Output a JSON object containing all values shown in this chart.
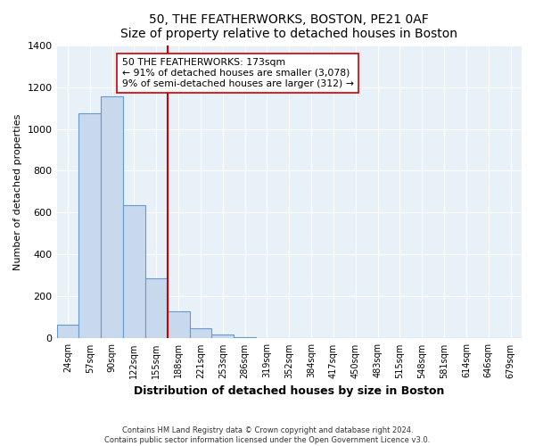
{
  "title": "50, THE FEATHERWORKS, BOSTON, PE21 0AF",
  "subtitle": "Size of property relative to detached houses in Boston",
  "xlabel": "Distribution of detached houses by size in Boston",
  "ylabel": "Number of detached properties",
  "bar_labels": [
    "24sqm",
    "57sqm",
    "90sqm",
    "122sqm",
    "155sqm",
    "188sqm",
    "221sqm",
    "253sqm",
    "286sqm",
    "319sqm",
    "352sqm",
    "384sqm",
    "417sqm",
    "450sqm",
    "483sqm",
    "515sqm",
    "548sqm",
    "581sqm",
    "614sqm",
    "646sqm",
    "679sqm"
  ],
  "bar_values": [
    65,
    1075,
    1155,
    638,
    288,
    130,
    47,
    18,
    8,
    0,
    0,
    0,
    0,
    0,
    0,
    0,
    0,
    0,
    0,
    0,
    0
  ],
  "bar_color": "#c8d9ee",
  "bar_edge_color": "#6699cc",
  "vline_color": "#cc0000",
  "annotation_line1": "50 THE FEATHERWORKS: 173sqm",
  "annotation_line2": "← 91% of detached houses are smaller (3,078)",
  "annotation_line3": "9% of semi-detached houses are larger (312) →",
  "annotation_box_color": "#ffffff",
  "annotation_box_edge": "#cc0000",
  "ylim": [
    0,
    1400
  ],
  "yticks": [
    0,
    200,
    400,
    600,
    800,
    1000,
    1200,
    1400
  ],
  "footer": "Contains HM Land Registry data © Crown copyright and database right 2024.\nContains public sector information licensed under the Open Government Licence v3.0.",
  "background_color": "#ffffff",
  "plot_bg_color": "#e8f0f8",
  "grid_color": "#ffffff"
}
